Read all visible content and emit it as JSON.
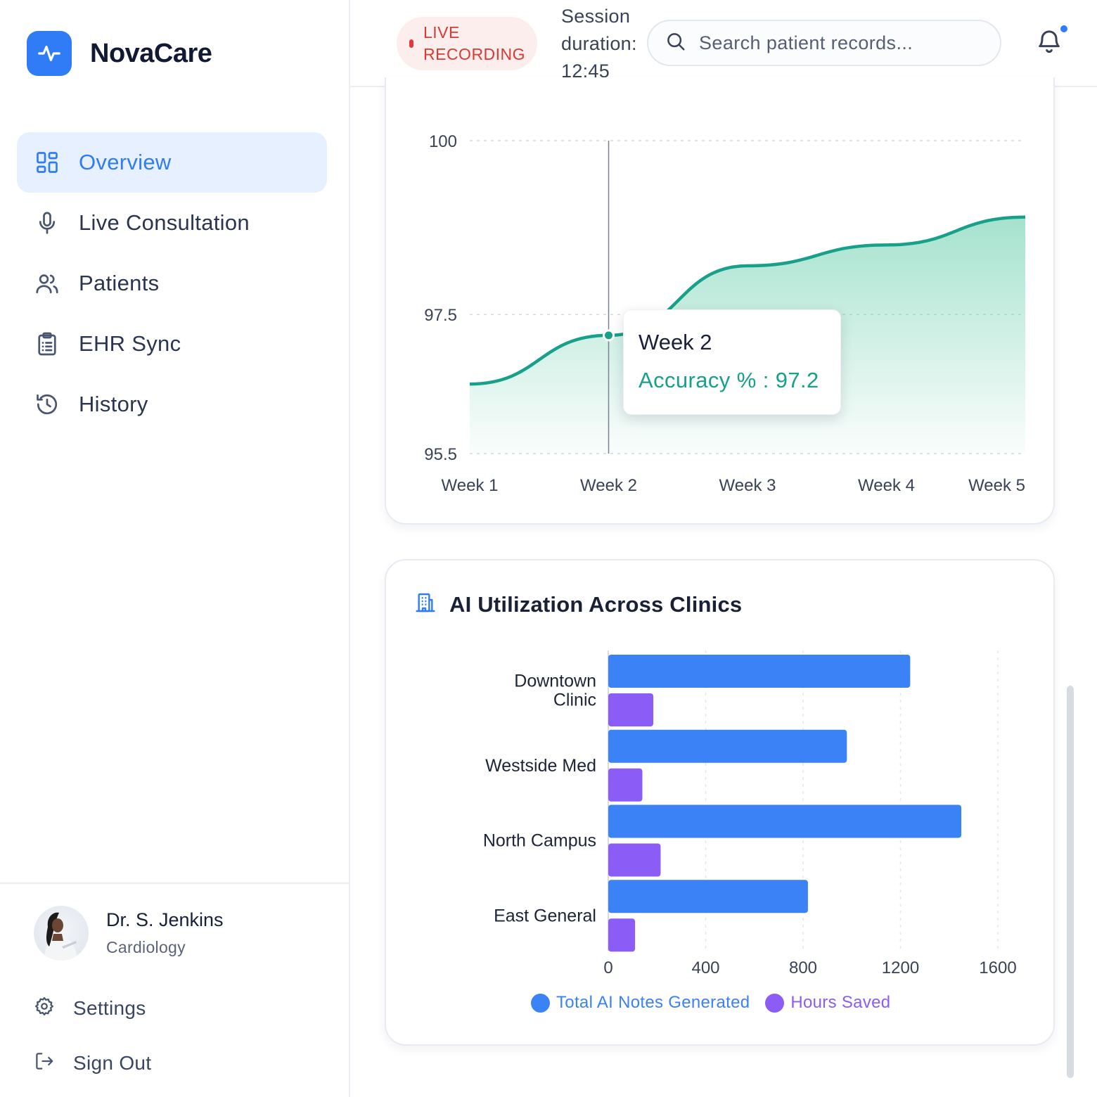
{
  "app": {
    "name": "NovaCare"
  },
  "sidebar": {
    "items": [
      {
        "label": "Overview",
        "icon": "grid-icon",
        "active": true
      },
      {
        "label": "Live Consultation",
        "icon": "microphone-icon",
        "active": false
      },
      {
        "label": "Patients",
        "icon": "users-icon",
        "active": false
      },
      {
        "label": "EHR Sync",
        "icon": "clipboard-icon",
        "active": false
      },
      {
        "label": "History",
        "icon": "history-icon",
        "active": false
      }
    ],
    "profile": {
      "name": "Dr. S. Jenkins",
      "role": "Cardiology"
    },
    "settings_label": "Settings",
    "signout_label": "Sign Out"
  },
  "header": {
    "live_line1": "LIVE",
    "live_line2": "RECORDING",
    "session_line1": "Session",
    "session_line2": "duration:",
    "session_time": "12:45",
    "search_placeholder": "Search patient records...",
    "notification_unread": true
  },
  "colors": {
    "accent": "#2f7cf6",
    "accuracy_line": "#17a08a",
    "notes_series": "#3b82f6",
    "hours_series": "#8b5cf6",
    "live_red": "#d83a34"
  },
  "chart_data": [
    {
      "type": "area",
      "title": "",
      "x": [
        "Week 1",
        "Week 2",
        "Week 3",
        "Week 4",
        "Week 5"
      ],
      "series": [
        {
          "name": "Accuracy %",
          "values": [
            96.5,
            97.2,
            98.2,
            98.5,
            98.9
          ]
        }
      ],
      "y_ticks": [
        95.5,
        97.5,
        100
      ],
      "ylim": [
        95.5,
        100
      ],
      "tooltip": {
        "label": "Week 2",
        "series": "Accuracy %",
        "value": "97.2"
      }
    },
    {
      "type": "bar",
      "orientation": "horizontal",
      "title": "AI Utilization Across Clinics",
      "categories": [
        "Downtown Clinic",
        "Westside Med",
        "North Campus",
        "East General"
      ],
      "series": [
        {
          "name": "Total AI Notes Generated",
          "values": [
            1240,
            980,
            1450,
            820
          ]
        },
        {
          "name": "Hours Saved",
          "values": [
            185,
            140,
            215,
            110
          ]
        }
      ],
      "x_ticks": [
        0,
        400,
        800,
        1200,
        1600
      ],
      "xlim": [
        0,
        1600
      ],
      "legend": "bottom-center"
    }
  ]
}
